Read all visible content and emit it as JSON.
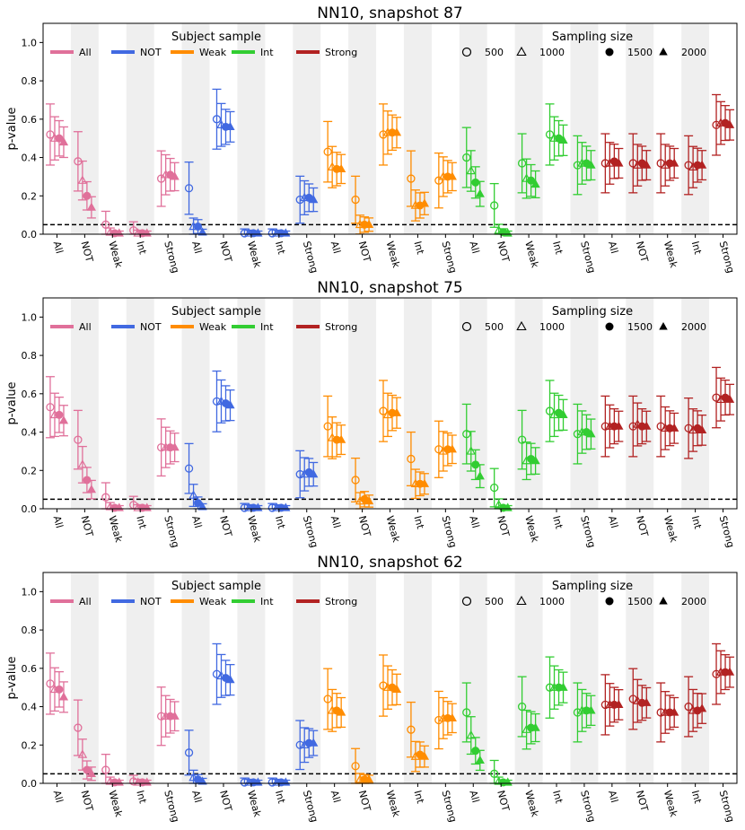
{
  "chart_data": {
    "type": "scatter",
    "ylabel": "p-value",
    "ylim": [
      0,
      1.1
    ],
    "yticks": [
      "0.0",
      "0.2",
      "0.4",
      "0.6",
      "0.8",
      "1.0"
    ],
    "threshold": 0.05,
    "sample_groups": [
      "All",
      "NOT",
      "Weak",
      "Int",
      "Strong"
    ],
    "sampling_sizes": [
      "500",
      "1000",
      "1500",
      "2000"
    ],
    "legend": {
      "subject_title": "Subject sample",
      "sampling_title": "Sampling size"
    },
    "colors": {
      "All": "#e0709a",
      "NOT": "#4169e1",
      "Weak": "#ff8c00",
      "Int": "#32cd32",
      "Strong": "#b22222",
      "shade": "#efefef"
    },
    "panels": [
      {
        "title": "NN10, snapshot 87",
        "values": [
          [
            0.52,
            0.5,
            0.5,
            0.48
          ],
          [
            0.38,
            0.28,
            0.2,
            0.14
          ],
          [
            0.05,
            0.01,
            0.005,
            0.005
          ],
          [
            0.02,
            0.005,
            0.005,
            0.005
          ],
          [
            0.29,
            0.31,
            0.31,
            0.3
          ],
          [
            0.24,
            0.04,
            0.04,
            0.01
          ],
          [
            0.6,
            0.57,
            0.56,
            0.56
          ],
          [
            0.005,
            0.005,
            0.005,
            0.005
          ],
          [
            0.005,
            0.005,
            0.005,
            0.005
          ],
          [
            0.18,
            0.19,
            0.19,
            0.18
          ],
          [
            0.43,
            0.35,
            0.34,
            0.34
          ],
          [
            0.18,
            0.05,
            0.05,
            0.05
          ],
          [
            0.52,
            0.53,
            0.53,
            0.53
          ],
          [
            0.29,
            0.15,
            0.15,
            0.16
          ],
          [
            0.28,
            0.3,
            0.3,
            0.3
          ],
          [
            0.4,
            0.33,
            0.27,
            0.21
          ],
          [
            0.15,
            0.02,
            0.01,
            0.005
          ],
          [
            0.37,
            0.29,
            0.28,
            0.26
          ],
          [
            0.52,
            0.5,
            0.5,
            0.49
          ],
          [
            0.36,
            0.37,
            0.37,
            0.36
          ],
          [
            0.37,
            0.37,
            0.38,
            0.37
          ],
          [
            0.37,
            0.36,
            0.37,
            0.36
          ],
          [
            0.37,
            0.36,
            0.37,
            0.37
          ],
          [
            0.36,
            0.35,
            0.36,
            0.36
          ],
          [
            0.57,
            0.58,
            0.58,
            0.57
          ]
        ]
      },
      {
        "title": "NN10, snapshot 75",
        "values": [
          [
            0.53,
            0.49,
            0.49,
            0.46
          ],
          [
            0.36,
            0.23,
            0.15,
            0.1
          ],
          [
            0.06,
            0.01,
            0.005,
            0.005
          ],
          [
            0.02,
            0.005,
            0.005,
            0.005
          ],
          [
            0.32,
            0.32,
            0.32,
            0.32
          ],
          [
            0.21,
            0.07,
            0.03,
            0.01
          ],
          [
            0.56,
            0.56,
            0.55,
            0.54
          ],
          [
            0.005,
            0.005,
            0.005,
            0.005
          ],
          [
            0.005,
            0.005,
            0.005,
            0.005
          ],
          [
            0.18,
            0.18,
            0.19,
            0.18
          ],
          [
            0.43,
            0.37,
            0.36,
            0.36
          ],
          [
            0.15,
            0.04,
            0.05,
            0.04
          ],
          [
            0.51,
            0.49,
            0.5,
            0.5
          ],
          [
            0.26,
            0.13,
            0.13,
            0.13
          ],
          [
            0.31,
            0.3,
            0.31,
            0.31
          ],
          [
            0.39,
            0.3,
            0.23,
            0.17
          ],
          [
            0.11,
            0.02,
            0.005,
            0.005
          ],
          [
            0.36,
            0.25,
            0.26,
            0.25
          ],
          [
            0.51,
            0.49,
            0.5,
            0.49
          ],
          [
            0.39,
            0.4,
            0.4,
            0.39
          ],
          [
            0.43,
            0.43,
            0.43,
            0.43
          ],
          [
            0.43,
            0.44,
            0.43,
            0.43
          ],
          [
            0.43,
            0.42,
            0.42,
            0.42
          ],
          [
            0.42,
            0.41,
            0.42,
            0.41
          ],
          [
            0.58,
            0.57,
            0.58,
            0.57
          ]
        ]
      },
      {
        "title": "NN10, snapshot 62",
        "values": [
          [
            0.52,
            0.49,
            0.49,
            0.45
          ],
          [
            0.29,
            0.15,
            0.07,
            0.05
          ],
          [
            0.07,
            0.01,
            0.005,
            0.005
          ],
          [
            0.01,
            0.005,
            0.005,
            0.005
          ],
          [
            0.35,
            0.35,
            0.35,
            0.35
          ],
          [
            0.16,
            0.03,
            0.02,
            0.01
          ],
          [
            0.57,
            0.56,
            0.55,
            0.54
          ],
          [
            0.005,
            0.005,
            0.005,
            0.005
          ],
          [
            0.005,
            0.005,
            0.005,
            0.005
          ],
          [
            0.2,
            0.2,
            0.21,
            0.21
          ],
          [
            0.44,
            0.38,
            0.38,
            0.37
          ],
          [
            0.09,
            0.02,
            0.02,
            0.02
          ],
          [
            0.51,
            0.5,
            0.5,
            0.49
          ],
          [
            0.28,
            0.14,
            0.15,
            0.14
          ],
          [
            0.33,
            0.34,
            0.34,
            0.34
          ],
          [
            0.37,
            0.25,
            0.17,
            0.12
          ],
          [
            0.05,
            0.01,
            0.005,
            0.005
          ],
          [
            0.4,
            0.28,
            0.29,
            0.29
          ],
          [
            0.5,
            0.5,
            0.5,
            0.5
          ],
          [
            0.37,
            0.38,
            0.38,
            0.38
          ],
          [
            0.41,
            0.41,
            0.41,
            0.41
          ],
          [
            0.44,
            0.43,
            0.42,
            0.42
          ],
          [
            0.37,
            0.37,
            0.37,
            0.37
          ],
          [
            0.4,
            0.38,
            0.38,
            0.39
          ],
          [
            0.57,
            0.58,
            0.58,
            0.58
          ]
        ]
      }
    ]
  }
}
